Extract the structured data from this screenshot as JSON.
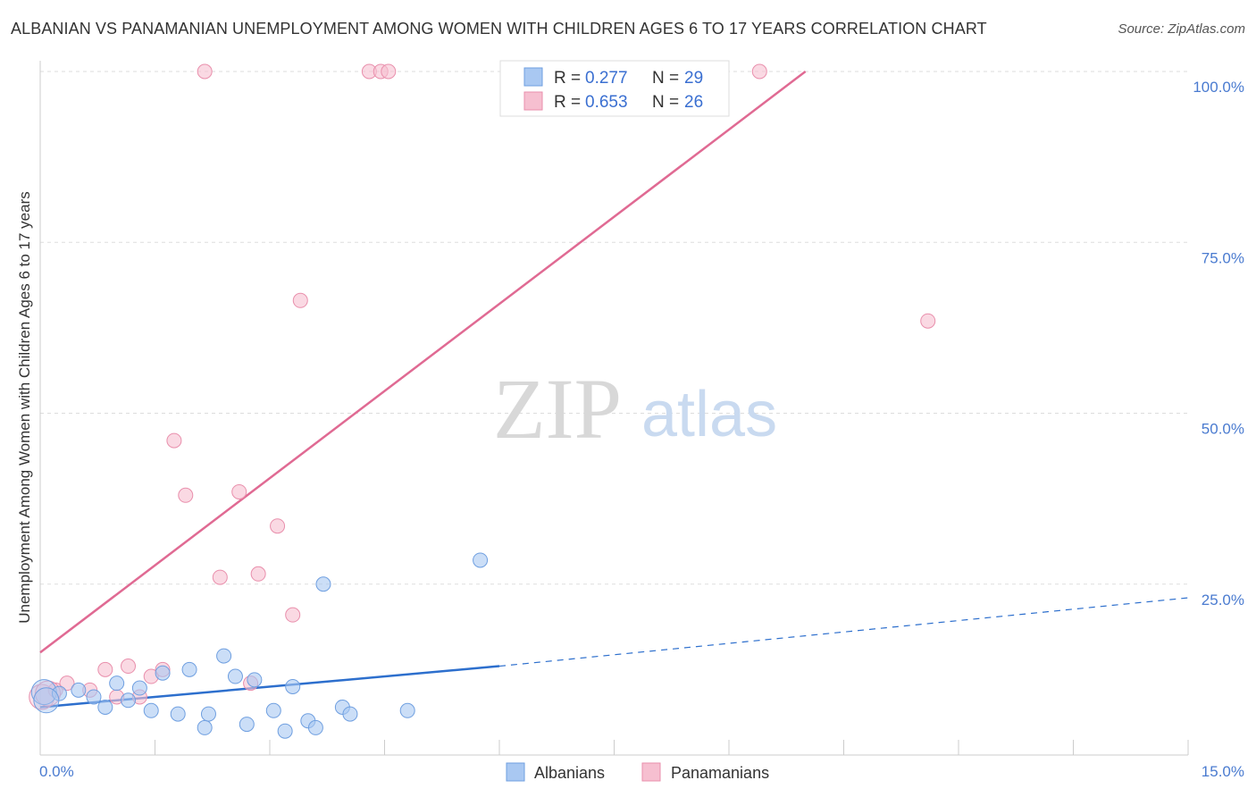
{
  "title": "ALBANIAN VS PANAMANIAN UNEMPLOYMENT AMONG WOMEN WITH CHILDREN AGES 6 TO 17 YEARS CORRELATION CHART",
  "source": "Source: ZipAtlas.com",
  "watermark": {
    "zip": "ZIP",
    "atlas": "atlas"
  },
  "colors": {
    "albanian_fill": "#a9c8f2",
    "albanian_stroke": "#6f9fe0",
    "albanian_line": "#2d6fcd",
    "panamanian_fill": "#f6bfd0",
    "panamanian_stroke": "#e98fac",
    "panamanian_line": "#e06a93",
    "grid": "#dddddd",
    "tick_label": "#4a7bd0"
  },
  "chart_data": {
    "type": "scatter",
    "title": "ALBANIAN VS PANAMANIAN UNEMPLOYMENT AMONG WOMEN WITH CHILDREN AGES 6 TO 17 YEARS CORRELATION CHART",
    "xlabel": "",
    "ylabel": "Unemployment Among Women with Children Ages 6 to 17 years",
    "xlim": [
      0,
      15
    ],
    "ylim": [
      0,
      100
    ],
    "x_tick_labels": [
      "0.0%",
      "15.0%"
    ],
    "y_ticks": [
      25,
      50,
      75,
      100
    ],
    "y_tick_labels": [
      "25.0%",
      "50.0%",
      "75.0%",
      "100.0%"
    ],
    "grid": true,
    "legend": [
      {
        "name": "Albanians",
        "r_label": "R =",
        "r_value": "0.277",
        "n_label": "N =",
        "n_value": "29"
      },
      {
        "name": "Panamanians",
        "r_label": "R =",
        "r_value": "0.653",
        "n_label": "N =",
        "n_value": "26"
      }
    ],
    "series": [
      {
        "name": "Albanians",
        "points": [
          [
            0.05,
            9.2
          ],
          [
            0.25,
            9.0
          ],
          [
            0.5,
            9.5
          ],
          [
            0.7,
            8.5
          ],
          [
            0.85,
            7.0
          ],
          [
            1.0,
            10.5
          ],
          [
            1.15,
            8.0
          ],
          [
            1.3,
            9.8
          ],
          [
            1.45,
            6.5
          ],
          [
            1.6,
            12.0
          ],
          [
            1.8,
            6.0
          ],
          [
            1.95,
            12.5
          ],
          [
            2.15,
            4.0
          ],
          [
            2.2,
            6.0
          ],
          [
            2.4,
            14.5
          ],
          [
            2.55,
            11.5
          ],
          [
            2.7,
            4.5
          ],
          [
            2.8,
            11.0
          ],
          [
            3.05,
            6.5
          ],
          [
            3.2,
            3.5
          ],
          [
            3.3,
            10.0
          ],
          [
            3.5,
            5.0
          ],
          [
            3.6,
            4.0
          ],
          [
            3.7,
            25.0
          ],
          [
            3.95,
            7.0
          ],
          [
            4.05,
            6.0
          ],
          [
            4.8,
            6.5
          ],
          [
            5.75,
            28.5
          ],
          [
            0.08,
            8.0
          ]
        ],
        "trend": {
          "x0": 0,
          "y0": 7.0,
          "x1_solid": 6.0,
          "y1_solid": 13.0,
          "x1_dashed": 15.0,
          "y1_dashed": 23.0
        }
      },
      {
        "name": "Panamanians",
        "points": [
          [
            0.02,
            8.5
          ],
          [
            0.2,
            9.5
          ],
          [
            0.35,
            10.5
          ],
          [
            0.65,
            9.5
          ],
          [
            0.85,
            12.5
          ],
          [
            1.0,
            8.5
          ],
          [
            1.15,
            13.0
          ],
          [
            1.3,
            8.5
          ],
          [
            1.45,
            11.5
          ],
          [
            1.6,
            12.5
          ],
          [
            1.75,
            46.0
          ],
          [
            1.9,
            38.0
          ],
          [
            2.15,
            100.0
          ],
          [
            2.35,
            26.0
          ],
          [
            2.6,
            38.5
          ],
          [
            2.75,
            10.5
          ],
          [
            2.85,
            26.5
          ],
          [
            3.1,
            33.5
          ],
          [
            3.3,
            20.5
          ],
          [
            3.4,
            66.5
          ],
          [
            4.3,
            100.0
          ],
          [
            4.45,
            100.0
          ],
          [
            4.55,
            100.0
          ],
          [
            9.4,
            100.0
          ],
          [
            11.6,
            63.5
          ],
          [
            0.1,
            9.0
          ]
        ],
        "trend": {
          "x0": 0,
          "y0": 15.0,
          "x1": 10.0,
          "y1": 100.0
        }
      }
    ]
  }
}
